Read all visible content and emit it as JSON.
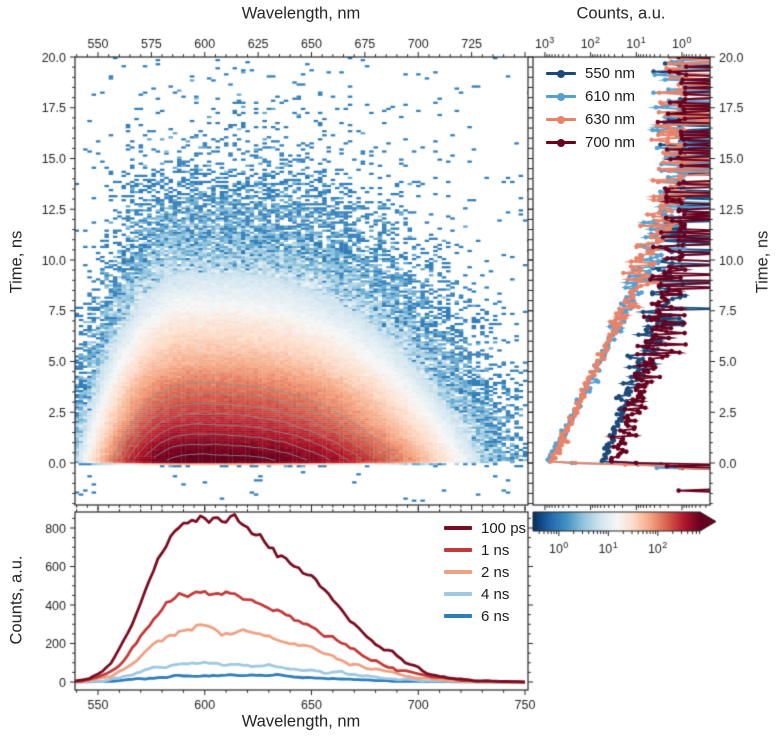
{
  "labels": {
    "wavelength_top": "Wavelength, nm",
    "counts_top": "Counts, a.u.",
    "time_left": "Time, ns",
    "time_right": "Time, ns",
    "counts_left": "Counts, a.u.",
    "wavelength_bottom": "Wavelength, nm"
  },
  "colors": {
    "background": "#ffffff",
    "axis": "#262626",
    "tick_label": "#262626",
    "contour": "#8f8f8f",
    "colormap_name": "RdBu_r",
    "colormap_anchors": [
      "#053061",
      "#2166ac",
      "#4393c3",
      "#92c5de",
      "#d1e5f0",
      "#f7f7f7",
      "#fddbc7",
      "#f4a582",
      "#d6604d",
      "#b2182b",
      "#67001f"
    ]
  },
  "chart_data": [
    {
      "id": "streak-heatmap",
      "type": "heatmap",
      "xlabel": "Wavelength, nm",
      "ylabel": "Time, ns",
      "xlim": [
        539,
        751.4
      ],
      "ylim": [
        -2.07,
        20.0
      ],
      "x_major_ticks": [
        550,
        575,
        600,
        625,
        650,
        675,
        700,
        725,
        750
      ],
      "x_tick_labels": [
        "550",
        "575",
        "600",
        "625",
        "650",
        "675",
        "700",
        "725"
      ],
      "x_minor_step_nm": 5,
      "y_major_ticks": [
        0.0,
        2.5,
        5.0,
        7.5,
        10.0,
        12.5,
        15.0,
        17.5,
        20.0
      ],
      "y_tick_labels": [
        "0.0",
        "2.5",
        "5.0",
        "7.5",
        "10.0",
        "12.5",
        "15.0",
        "17.5",
        "20.0"
      ],
      "y_minor_step_ns": 0.5,
      "colormap": "RdBu_r",
      "norm": {
        "type": "log",
        "vmin": 0.3,
        "vmax": 710
      },
      "grid": false,
      "signal_model": {
        "peak_wavelength_nm": 597,
        "sigma_blue_nm": 31,
        "sigma_red_nm": 72,
        "shape_exponent": 2.6,
        "peak_counts": 820,
        "lifetime_ns": 1.9,
        "rise_center_ns": 0.1,
        "rise_width_ns": 0.09,
        "dark_count_rate": 0.015,
        "bin_nm": 2,
        "bin_ns": 0.1
      },
      "contour_levels_counts": [
        110,
        143,
        186,
        242,
        315,
        410,
        533,
        693
      ]
    },
    {
      "id": "decay-curves",
      "type": "line",
      "xlabel": "Counts, a.u.",
      "ylabel": "Time, ns",
      "x_scale": "log-inverted",
      "xlim": [
        1800,
        0.24
      ],
      "x_tick_labels": [
        "10³",
        "10²",
        "10¹",
        "10⁰"
      ],
      "x_tick_exponents": [
        3,
        2,
        1,
        0
      ],
      "ylim": [
        -2.07,
        20.0
      ],
      "y_major_ticks": [
        0.0,
        2.5,
        5.0,
        7.5,
        10.0,
        12.5,
        15.0,
        17.5,
        20.0
      ],
      "y_tick_labels": [
        "0.0",
        "2.5",
        "5.0",
        "7.5",
        "10.0",
        "12.5",
        "15.0",
        "17.5",
        "20.0"
      ],
      "legend_position": "upper left",
      "marker": "circle",
      "series": [
        {
          "label": "550 nm",
          "color": "#1c4977",
          "peak_counts": 52,
          "lifetime_ns": 2.6,
          "noise_floor_counts": 0.45
        },
        {
          "label": "610 nm",
          "color": "#56a0cf",
          "peak_counts": 810,
          "lifetime_ns": 1.9,
          "noise_floor_counts": 1.0
        },
        {
          "label": "630 nm",
          "color": "#e8836a",
          "peak_counts": 700,
          "lifetime_ns": 2.05,
          "noise_floor_counts": 1.0
        },
        {
          "label": "700 nm",
          "color": "#67001f",
          "peak_counts": 30,
          "lifetime_ns": 2.7,
          "noise_floor_counts": 0.5
        }
      ]
    },
    {
      "id": "time-slice-spectra",
      "type": "line",
      "xlabel": "Wavelength, nm",
      "ylabel": "Counts, a.u.",
      "xlim": [
        538,
        751.4
      ],
      "ylim": [
        -40,
        885
      ],
      "x_major_ticks": [
        550,
        600,
        650,
        700,
        750
      ],
      "x_tick_labels": [
        "550",
        "600",
        "650",
        "700",
        "750"
      ],
      "x_minor_step_nm": 10,
      "y_major_ticks": [
        0,
        200,
        400,
        600,
        800
      ],
      "y_tick_labels": [
        "0",
        "200",
        "400",
        "600",
        "800"
      ],
      "y_minor_step": 50,
      "legend_position": "upper right",
      "series": [
        {
          "label": "100 ps",
          "color": "#7a0c22",
          "time_ns": 0.1,
          "peak_counts": 820
        },
        {
          "label": "1 ns",
          "color": "#c23b38",
          "time_ns": 1.0,
          "peak_counts": 460
        },
        {
          "label": "2 ns",
          "color": "#efa183",
          "time_ns": 2.0,
          "peak_counts": 270
        },
        {
          "label": "4 ns",
          "color": "#9ec9e2",
          "time_ns": 4.0,
          "peak_counts": 95
        },
        {
          "label": "6 ns",
          "color": "#2f7db8",
          "time_ns": 6.0,
          "peak_counts": 35
        }
      ]
    },
    {
      "id": "colorbar",
      "type": "colorbar",
      "orientation": "horizontal",
      "scale": "log",
      "range": [
        0.3,
        710
      ],
      "tick_labels": [
        "10⁰",
        "10¹",
        "10²"
      ],
      "tick_exponents": [
        0,
        1,
        2
      ],
      "extend": "max",
      "colormap": "RdBu_r"
    }
  ]
}
